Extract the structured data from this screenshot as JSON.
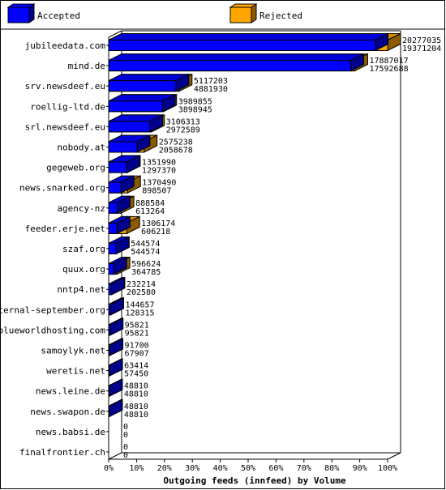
{
  "chart_data": {
    "type": "bar",
    "orientation": "horizontal",
    "style": "3d-overlapping",
    "title": "",
    "xlabel": "Outgoing feeds (innfeed) by Volume",
    "ylabel": "",
    "xlim": [
      0,
      100
    ],
    "x_unit": "%",
    "x_ticks": [
      "0%",
      "10%",
      "20%",
      "30%",
      "40%",
      "50%",
      "60%",
      "70%",
      "80%",
      "90%",
      "100%"
    ],
    "legend_position": "top",
    "series": [
      {
        "name": "Accepted",
        "color": "#0000ff"
      },
      {
        "name": "Rejected",
        "color": "#ffa500"
      }
    ],
    "max_value": 20277035,
    "categories": [
      "jubileedata.com",
      "mind.de",
      "srv.newsdeef.eu",
      "roellig-ltd.de",
      "srl.newsdeef.eu",
      "nobody.at",
      "gegeweb.org",
      "news.snarked.org",
      "agency-nz",
      "feeder.erje.net",
      "szaf.org",
      "quux.org",
      "nntp4.net",
      "eternal-september.org",
      "blueworldhosting.com",
      "samoylyk.net",
      "weretis.net",
      "news.leine.de",
      "news.swapon.de",
      "news.babsi.de",
      "finalfrontier.ch"
    ],
    "totals": [
      20277035,
      17887017,
      5117203,
      3989855,
      3106313,
      2575238,
      1351990,
      1370490,
      888584,
      1306174,
      544574,
      596624,
      232214,
      144657,
      95821,
      91700,
      63414,
      48810,
      48810,
      0,
      0
    ],
    "accepted": [
      19371204,
      17592688,
      4881930,
      3898945,
      2972589,
      2058678,
      1297370,
      898507,
      613264,
      606218,
      544574,
      364785,
      202580,
      128315,
      95821,
      67907,
      57450,
      48810,
      48810,
      0,
      0
    ]
  }
}
